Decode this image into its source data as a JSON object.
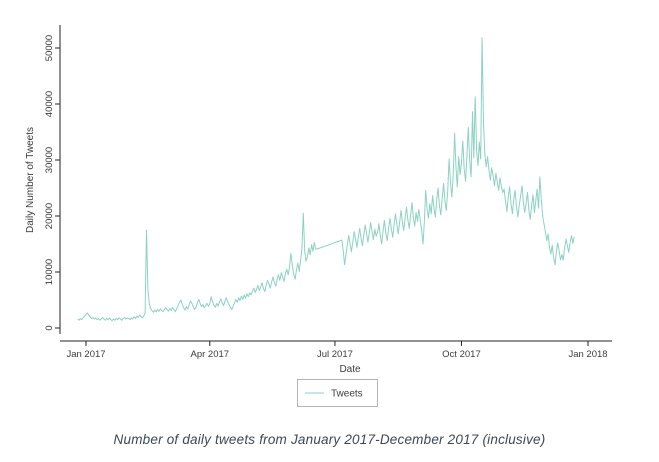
{
  "caption": {
    "text": "Number of daily tweets from January 2017-December 2017 (inclusive)"
  },
  "chart_data": {
    "type": "line",
    "title": "",
    "xlabel": "Date",
    "ylabel": "Daily Number of Tweets",
    "ylim": [
      0,
      52000
    ],
    "grid": false,
    "line_color": "#8cd2c2",
    "axis_color": "#232323",
    "legend": {
      "position": "bottom-center",
      "label": "Tweets"
    },
    "y_ticks": [
      {
        "label": "0",
        "value": 0
      },
      {
        "label": "10000",
        "value": 10000
      },
      {
        "label": "20000",
        "value": 20000
      },
      {
        "label": "30000",
        "value": 30000
      },
      {
        "label": "40000",
        "value": 40000
      },
      {
        "label": "50000",
        "value": 50000
      }
    ],
    "x_ticks": [
      {
        "label": "Jan 2017",
        "day": 0
      },
      {
        "label": "Apr 2017",
        "day": 90
      },
      {
        "label": "Jul 2017",
        "day": 181
      },
      {
        "label": "Oct 2017",
        "day": 273
      },
      {
        "label": "Jan 2018",
        "day": 365
      }
    ],
    "series": [
      {
        "name": "Tweets",
        "frequency": "daily",
        "start_date": "2016-12-26",
        "notes": "values are approximate daily tweet counts read from the plot; Feb 14 spike ~17500; Jun 8 spike ~20500; data gap interpolated Jun 18-Jul 6; max ~51800 mid-October",
        "values": [
          1600,
          1400,
          1700,
          1500,
          1900,
          2100,
          2400,
          2700,
          2300,
          2000,
          1700,
          1900,
          1600,
          1800,
          1500,
          1700,
          1400,
          1600,
          1900,
          1600,
          1400,
          1700,
          1500,
          1800,
          1500,
          1300,
          1600,
          1400,
          1700,
          1500,
          1800,
          1600,
          1400,
          1700,
          1900,
          1600,
          1800,
          1700,
          1500,
          1800,
          1600,
          2000,
          1700,
          2100,
          1900,
          2300,
          2000,
          1800,
          2200,
          2600,
          17500,
          6800,
          4300,
          3500,
          3100,
          2800,
          3200,
          2900,
          3300,
          3000,
          3400,
          3100,
          2900,
          3300,
          3600,
          3300,
          3000,
          3500,
          3100,
          3700,
          3300,
          2900,
          3500,
          4000,
          4600,
          5000,
          4200,
          3600,
          3200,
          3800,
          3400,
          4200,
          4800,
          4400,
          3800,
          3300,
          3700,
          4500,
          5100,
          4400,
          3800,
          4200,
          3600,
          4000,
          4400,
          3900,
          4300,
          5600,
          4700,
          4100,
          3700,
          4400,
          3900,
          4600,
          5200,
          4500,
          4000,
          4800,
          5400,
          4700,
          4200,
          3700,
          3300,
          3900,
          4500,
          5100,
          4600,
          5400,
          4900,
          5700,
          5100,
          5900,
          5300,
          6100,
          5600,
          6300,
          5900,
          6500,
          7100,
          6300,
          6900,
          7600,
          6700,
          7300,
          8100,
          7100,
          6500,
          7700,
          8500,
          7900,
          7100,
          8300,
          9100,
          8100,
          7500,
          8700,
          9500,
          8500,
          9900,
          9100,
          8300,
          9700,
          10500,
          9500,
          11000,
          13300,
          11200,
          9600,
          8700,
          10300,
          11600,
          10100,
          12100,
          14100,
          20500,
          13600,
          11900,
          12700,
          14300,
          13100,
          14900,
          13700,
          15300,
          14100,
          14100,
          14190,
          14280,
          14370,
          14460,
          14540,
          14630,
          14720,
          14810,
          14900,
          14990,
          15080,
          15170,
          15260,
          15340,
          15430,
          15520,
          15610,
          15700,
          13800,
          11300,
          13000,
          14800,
          16500,
          15000,
          13600,
          15400,
          17200,
          15800,
          14400,
          16200,
          17800,
          16000,
          14700,
          16600,
          18400,
          16800,
          15300,
          17000,
          18800,
          17200,
          15800,
          17600,
          16400,
          17000,
          18600,
          16500,
          15000,
          17400,
          19200,
          17000,
          15600,
          17800,
          19600,
          17800,
          16200,
          18400,
          20400,
          18600,
          16800,
          18800,
          21000,
          19000,
          17400,
          19600,
          21600,
          19400,
          17800,
          20200,
          22400,
          19800,
          18200,
          20600,
          19000,
          21200,
          19400,
          17400,
          15000,
          18800,
          24600,
          21200,
          19600,
          22200,
          20400,
          23600,
          21400,
          19800,
          22800,
          25000,
          21800,
          20200,
          23200,
          25800,
          22600,
          21000,
          24400,
          30200,
          26000,
          23400,
          27200,
          34800,
          28600,
          25200,
          30600,
          27400,
          29600,
          33400,
          28400,
          26200,
          31000,
          35800,
          29800,
          27000,
          38600,
          30400,
          41300,
          31600,
          29000,
          33200,
          30200,
          51800,
          36600,
          31200,
          28800,
          30600,
          28200,
          26400,
          28600,
          27200,
          25400,
          27600,
          26200,
          24600,
          26800,
          25200,
          24200,
          24800,
          22600,
          20800,
          23400,
          25200,
          22200,
          20400,
          22800,
          24600,
          21600,
          19800,
          21800,
          23600,
          25400,
          22400,
          20600,
          22200,
          24200,
          21000,
          19400,
          21800,
          23800,
          20600,
          22600,
          24800,
          21400,
          27000,
          23200,
          20000,
          18600,
          17200,
          15600,
          16800,
          14400,
          13200,
          14800,
          12600,
          11300,
          13600,
          15200,
          13800,
          12200,
          13100,
          12100,
          14300,
          15900,
          14700,
          13500,
          15300,
          16500,
          15100,
          16300
        ]
      }
    ]
  }
}
